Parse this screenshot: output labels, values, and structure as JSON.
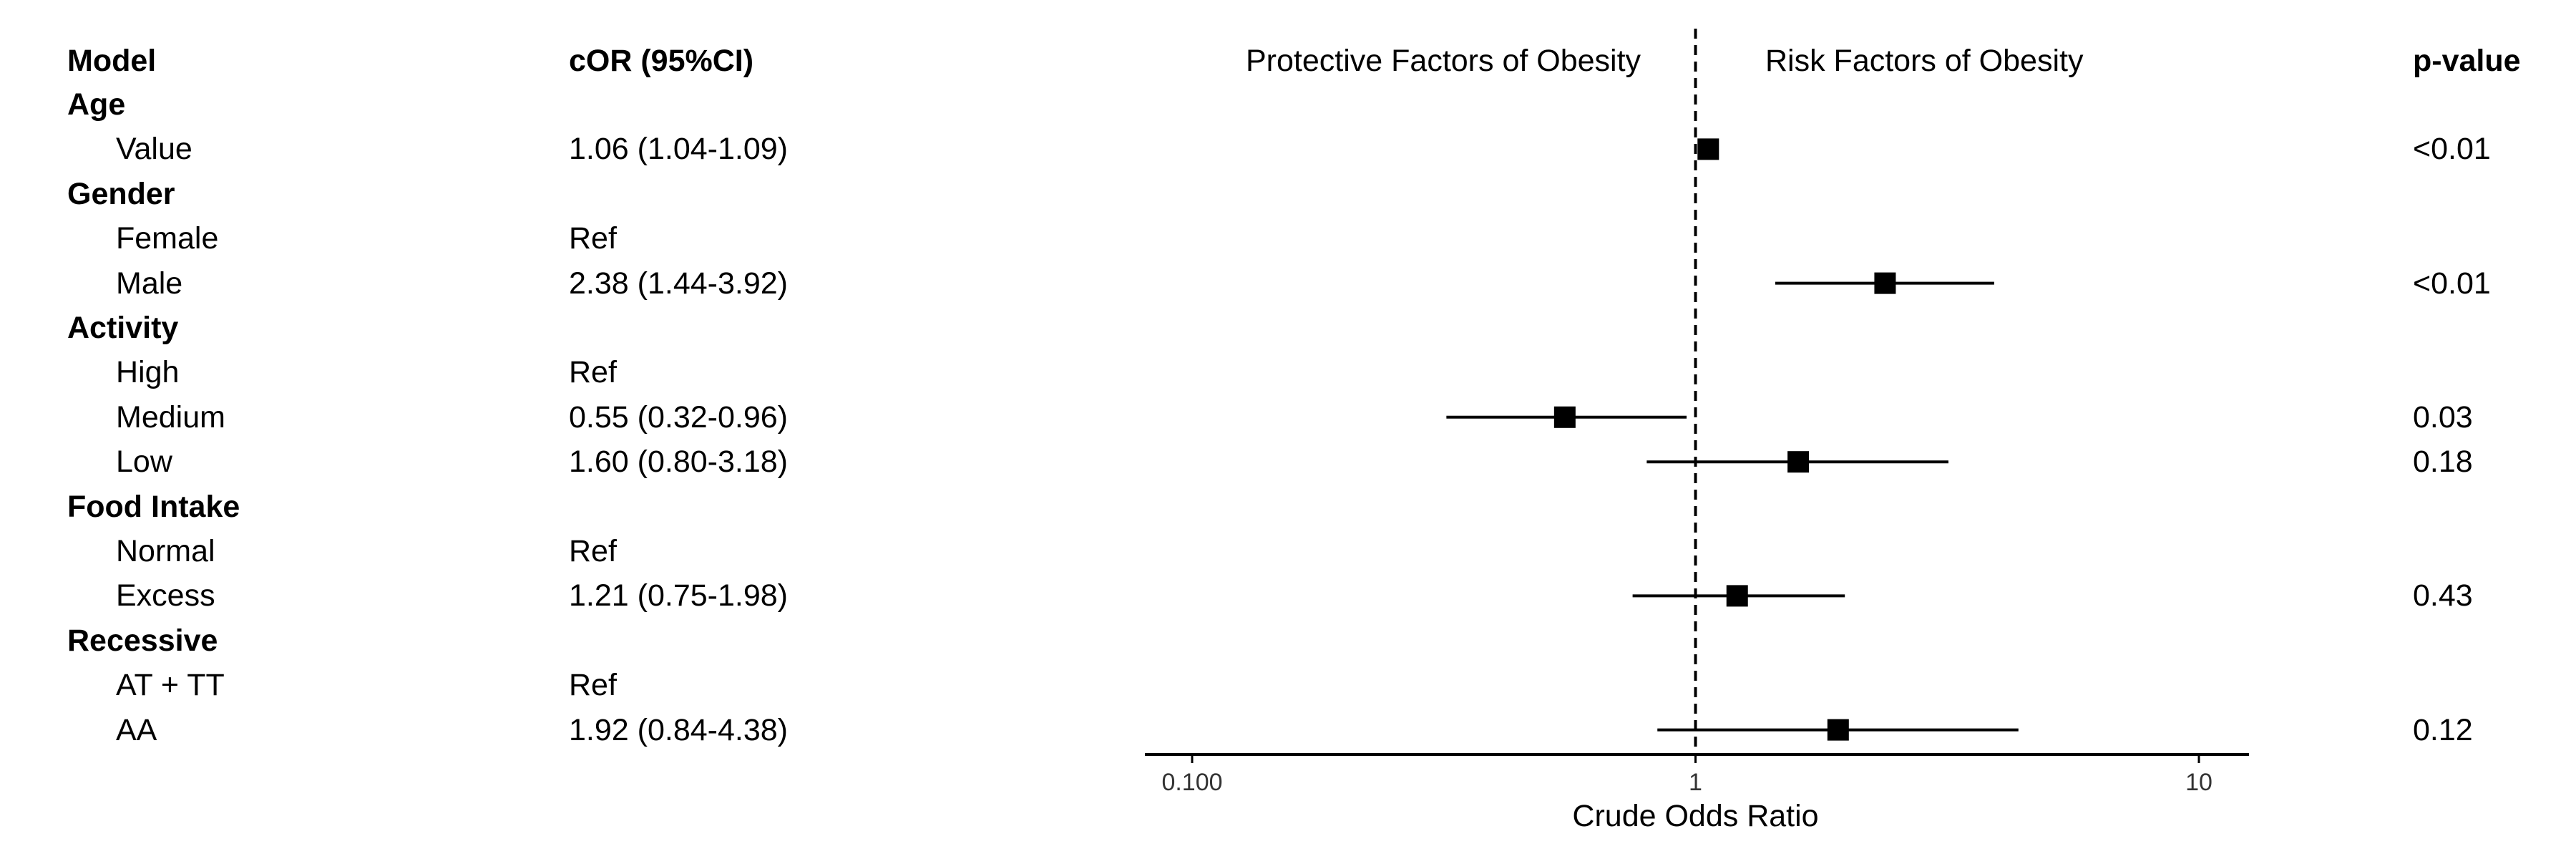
{
  "headers": {
    "model": "Model",
    "cor": "cOR (95%CI)",
    "pvalue": "p-value",
    "protective": "Protective Factors of Obesity",
    "risk": "Risk Factors of Obesity"
  },
  "rows": [
    {
      "label": "Age",
      "type": "group"
    },
    {
      "label": "Value",
      "type": "item",
      "cor": "1.06 (1.04-1.09)",
      "p": "<0.01"
    },
    {
      "label": "Gender",
      "type": "group"
    },
    {
      "label": "Female",
      "type": "item",
      "cor": "Ref",
      "p": ""
    },
    {
      "label": "Male",
      "type": "item",
      "cor": "2.38 (1.44-3.92)",
      "p": "<0.01"
    },
    {
      "label": "Activity",
      "type": "group"
    },
    {
      "label": "High",
      "type": "item",
      "cor": "Ref",
      "p": ""
    },
    {
      "label": "Medium",
      "type": "item",
      "cor": "0.55 (0.32-0.96)",
      "p": "0.03"
    },
    {
      "label": "Low",
      "type": "item",
      "cor": "1.60 (0.80-3.18)",
      "p": "0.18"
    },
    {
      "label": "Food Intake",
      "type": "group"
    },
    {
      "label": "Normal",
      "type": "item",
      "cor": "Ref",
      "p": ""
    },
    {
      "label": "Excess",
      "type": "item",
      "cor": "1.21 (0.75-1.98)",
      "p": "0.43"
    },
    {
      "label": "Recessive",
      "type": "group"
    },
    {
      "label": "AT + TT",
      "type": "item",
      "cor": "Ref",
      "p": ""
    },
    {
      "label": "AA",
      "type": "item",
      "cor": "1.92 (0.84-4.38)",
      "p": "0.12"
    }
  ],
  "chart_data": {
    "type": "forest",
    "scale": "log",
    "xlabel": "Crude Odds Ratio",
    "xlim": [
      0.07,
      12
    ],
    "xticks": [
      {
        "value": 0.1,
        "label": "0.100"
      },
      {
        "value": 1,
        "label": "1"
      },
      {
        "value": 10,
        "label": "10"
      }
    ],
    "reference_line": 1,
    "points": [
      {
        "row": 1,
        "label": "Value",
        "or": 1.06,
        "lo": 1.04,
        "hi": 1.09
      },
      {
        "row": 4,
        "label": "Male",
        "or": 2.38,
        "lo": 1.44,
        "hi": 3.92
      },
      {
        "row": 7,
        "label": "Medium",
        "or": 0.55,
        "lo": 0.32,
        "hi": 0.96
      },
      {
        "row": 8,
        "label": "Low",
        "or": 1.6,
        "lo": 0.8,
        "hi": 3.18
      },
      {
        "row": 11,
        "label": "Excess",
        "or": 1.21,
        "lo": 0.75,
        "hi": 1.98
      },
      {
        "row": 14,
        "label": "AA",
        "or": 1.92,
        "lo": 0.84,
        "hi": 4.38
      }
    ],
    "colors": {
      "marker": "#000000",
      "line": "#000000"
    }
  }
}
